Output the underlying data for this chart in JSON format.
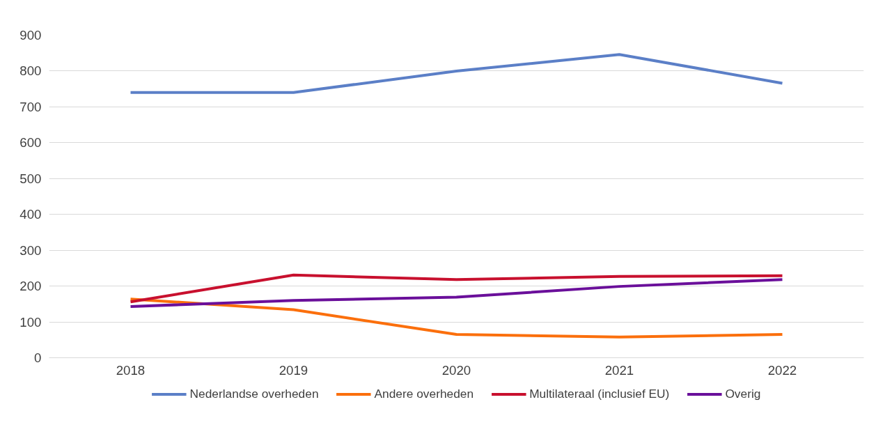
{
  "chart_data": {
    "type": "line",
    "categories": [
      "2018",
      "2019",
      "2020",
      "2021",
      "2022"
    ],
    "series": [
      {
        "name": "Nederlandse overheden",
        "color": "#5b7fc7",
        "values": [
          740,
          740,
          800,
          846,
          766
        ]
      },
      {
        "name": "Andere overheden",
        "color": "#fb6f0c",
        "values": [
          164,
          134,
          65,
          58,
          65
        ]
      },
      {
        "name": "Multilateraal (inclusief EU)",
        "color": "#c8102e",
        "values": [
          156,
          231,
          218,
          227,
          229
        ]
      },
      {
        "name": "Overig",
        "color": "#6a0f9a",
        "values": [
          143,
          160,
          169,
          199,
          218
        ]
      }
    ],
    "ylim": [
      0,
      900
    ],
    "yticks": [
      0,
      100,
      200,
      300,
      400,
      500,
      600,
      700,
      800,
      900
    ],
    "grid": "y",
    "legend": "bottom",
    "marker": "none",
    "line_style": "solid"
  }
}
